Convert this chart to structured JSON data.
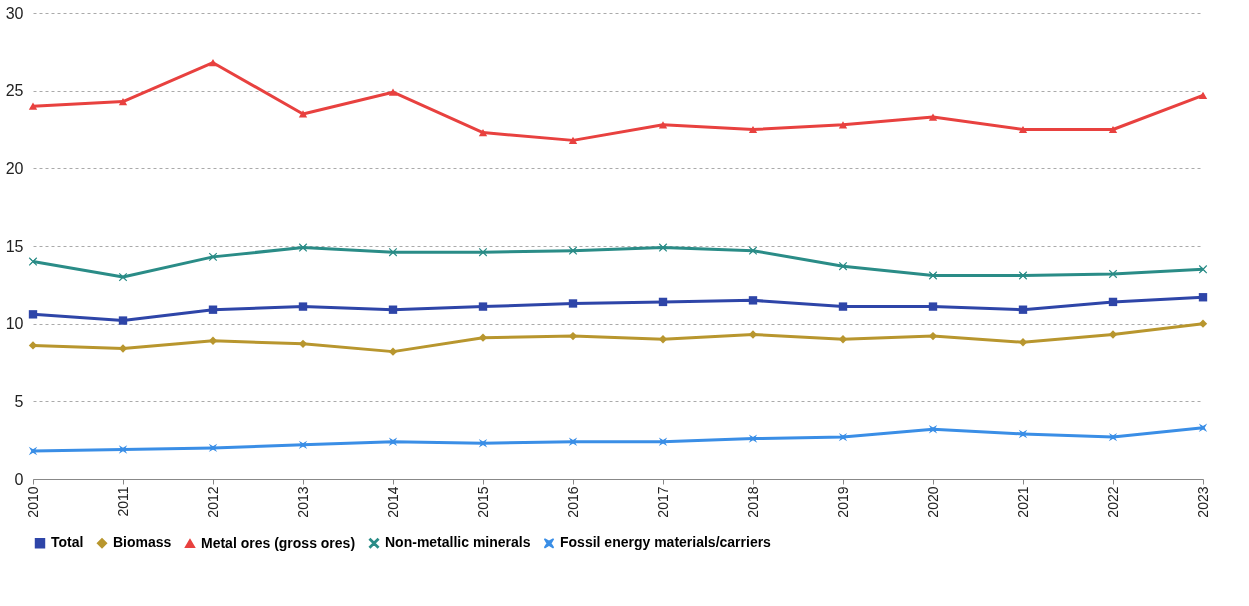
{
  "chart_data": {
    "type": "line",
    "categories": [
      "2010",
      "2011",
      "2012",
      "2013",
      "2014",
      "2015",
      "2016",
      "2017",
      "2018",
      "2019",
      "2020",
      "2021",
      "2022",
      "2023"
    ],
    "series": [
      {
        "name": "Total",
        "color": "#2e45a8",
        "marker": "square",
        "values": [
          10.6,
          10.2,
          10.9,
          11.1,
          10.9,
          11.1,
          11.3,
          11.4,
          11.5,
          11.1,
          11.1,
          10.9,
          11.4,
          11.7
        ]
      },
      {
        "name": "Biomass",
        "color": "#b8962e",
        "marker": "diamond",
        "values": [
          8.6,
          8.4,
          8.9,
          8.7,
          8.2,
          9.1,
          9.2,
          9.0,
          9.3,
          9.0,
          9.2,
          8.8,
          9.3,
          10.0
        ]
      },
      {
        "name": "Metal ores (gross ores)",
        "color": "#e8413f",
        "marker": "triangle",
        "values": [
          24.0,
          24.3,
          26.8,
          23.5,
          24.9,
          22.3,
          21.8,
          22.8,
          22.5,
          22.8,
          23.3,
          22.5,
          22.5,
          24.7
        ]
      },
      {
        "name": "Non-metallic minerals",
        "color": "#2a8c87",
        "marker": "cross",
        "values": [
          14.0,
          13.0,
          14.3,
          14.9,
          14.6,
          14.6,
          14.7,
          14.9,
          14.7,
          13.7,
          13.1,
          13.1,
          13.2,
          13.5
        ]
      },
      {
        "name": "Fossil energy materials/carriers",
        "color": "#3a8ee6",
        "marker": "star",
        "values": [
          1.8,
          1.9,
          2.0,
          2.2,
          2.4,
          2.3,
          2.4,
          2.4,
          2.6,
          2.7,
          3.2,
          2.9,
          2.7,
          3.3
        ]
      }
    ],
    "ylim": [
      0,
      30
    ],
    "yticks": [
      0,
      5,
      10,
      15,
      20,
      25,
      30
    ],
    "grid": "y",
    "legend": "bottom",
    "line_style": "solid"
  }
}
